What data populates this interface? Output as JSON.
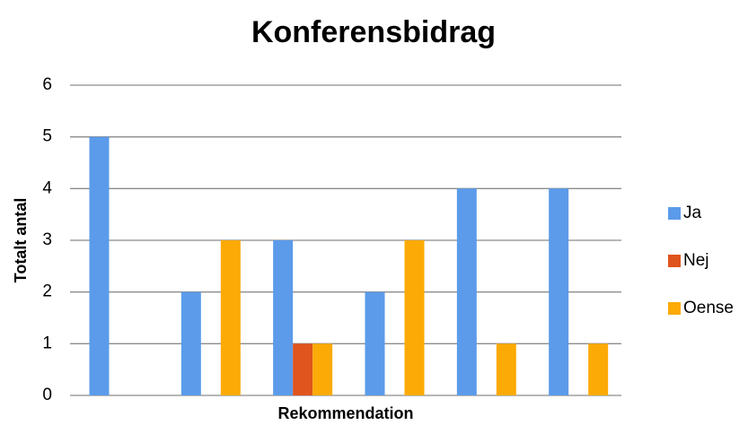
{
  "chart_data": {
    "type": "bar",
    "title": "Konferensbidrag",
    "x_label": "Rekommendation",
    "y_label": "Totalt antal",
    "categories": [
      null,
      null,
      null,
      null,
      null,
      null
    ],
    "series": [
      {
        "name": "Ja",
        "color": "#5b9bea",
        "values": [
          5,
          2,
          3,
          2,
          4,
          4
        ]
      },
      {
        "name": "Nej",
        "color": "#e0541d",
        "values": [
          0,
          0,
          1,
          0,
          0,
          0
        ]
      },
      {
        "name": "Oense",
        "color": "#fcaa05",
        "values": [
          0,
          3,
          1,
          3,
          1,
          1
        ]
      }
    ],
    "ylim": [
      0,
      6
    ],
    "yticks": [
      0,
      1,
      2,
      3,
      4,
      5,
      6
    ],
    "grid": true,
    "legend": "right"
  }
}
